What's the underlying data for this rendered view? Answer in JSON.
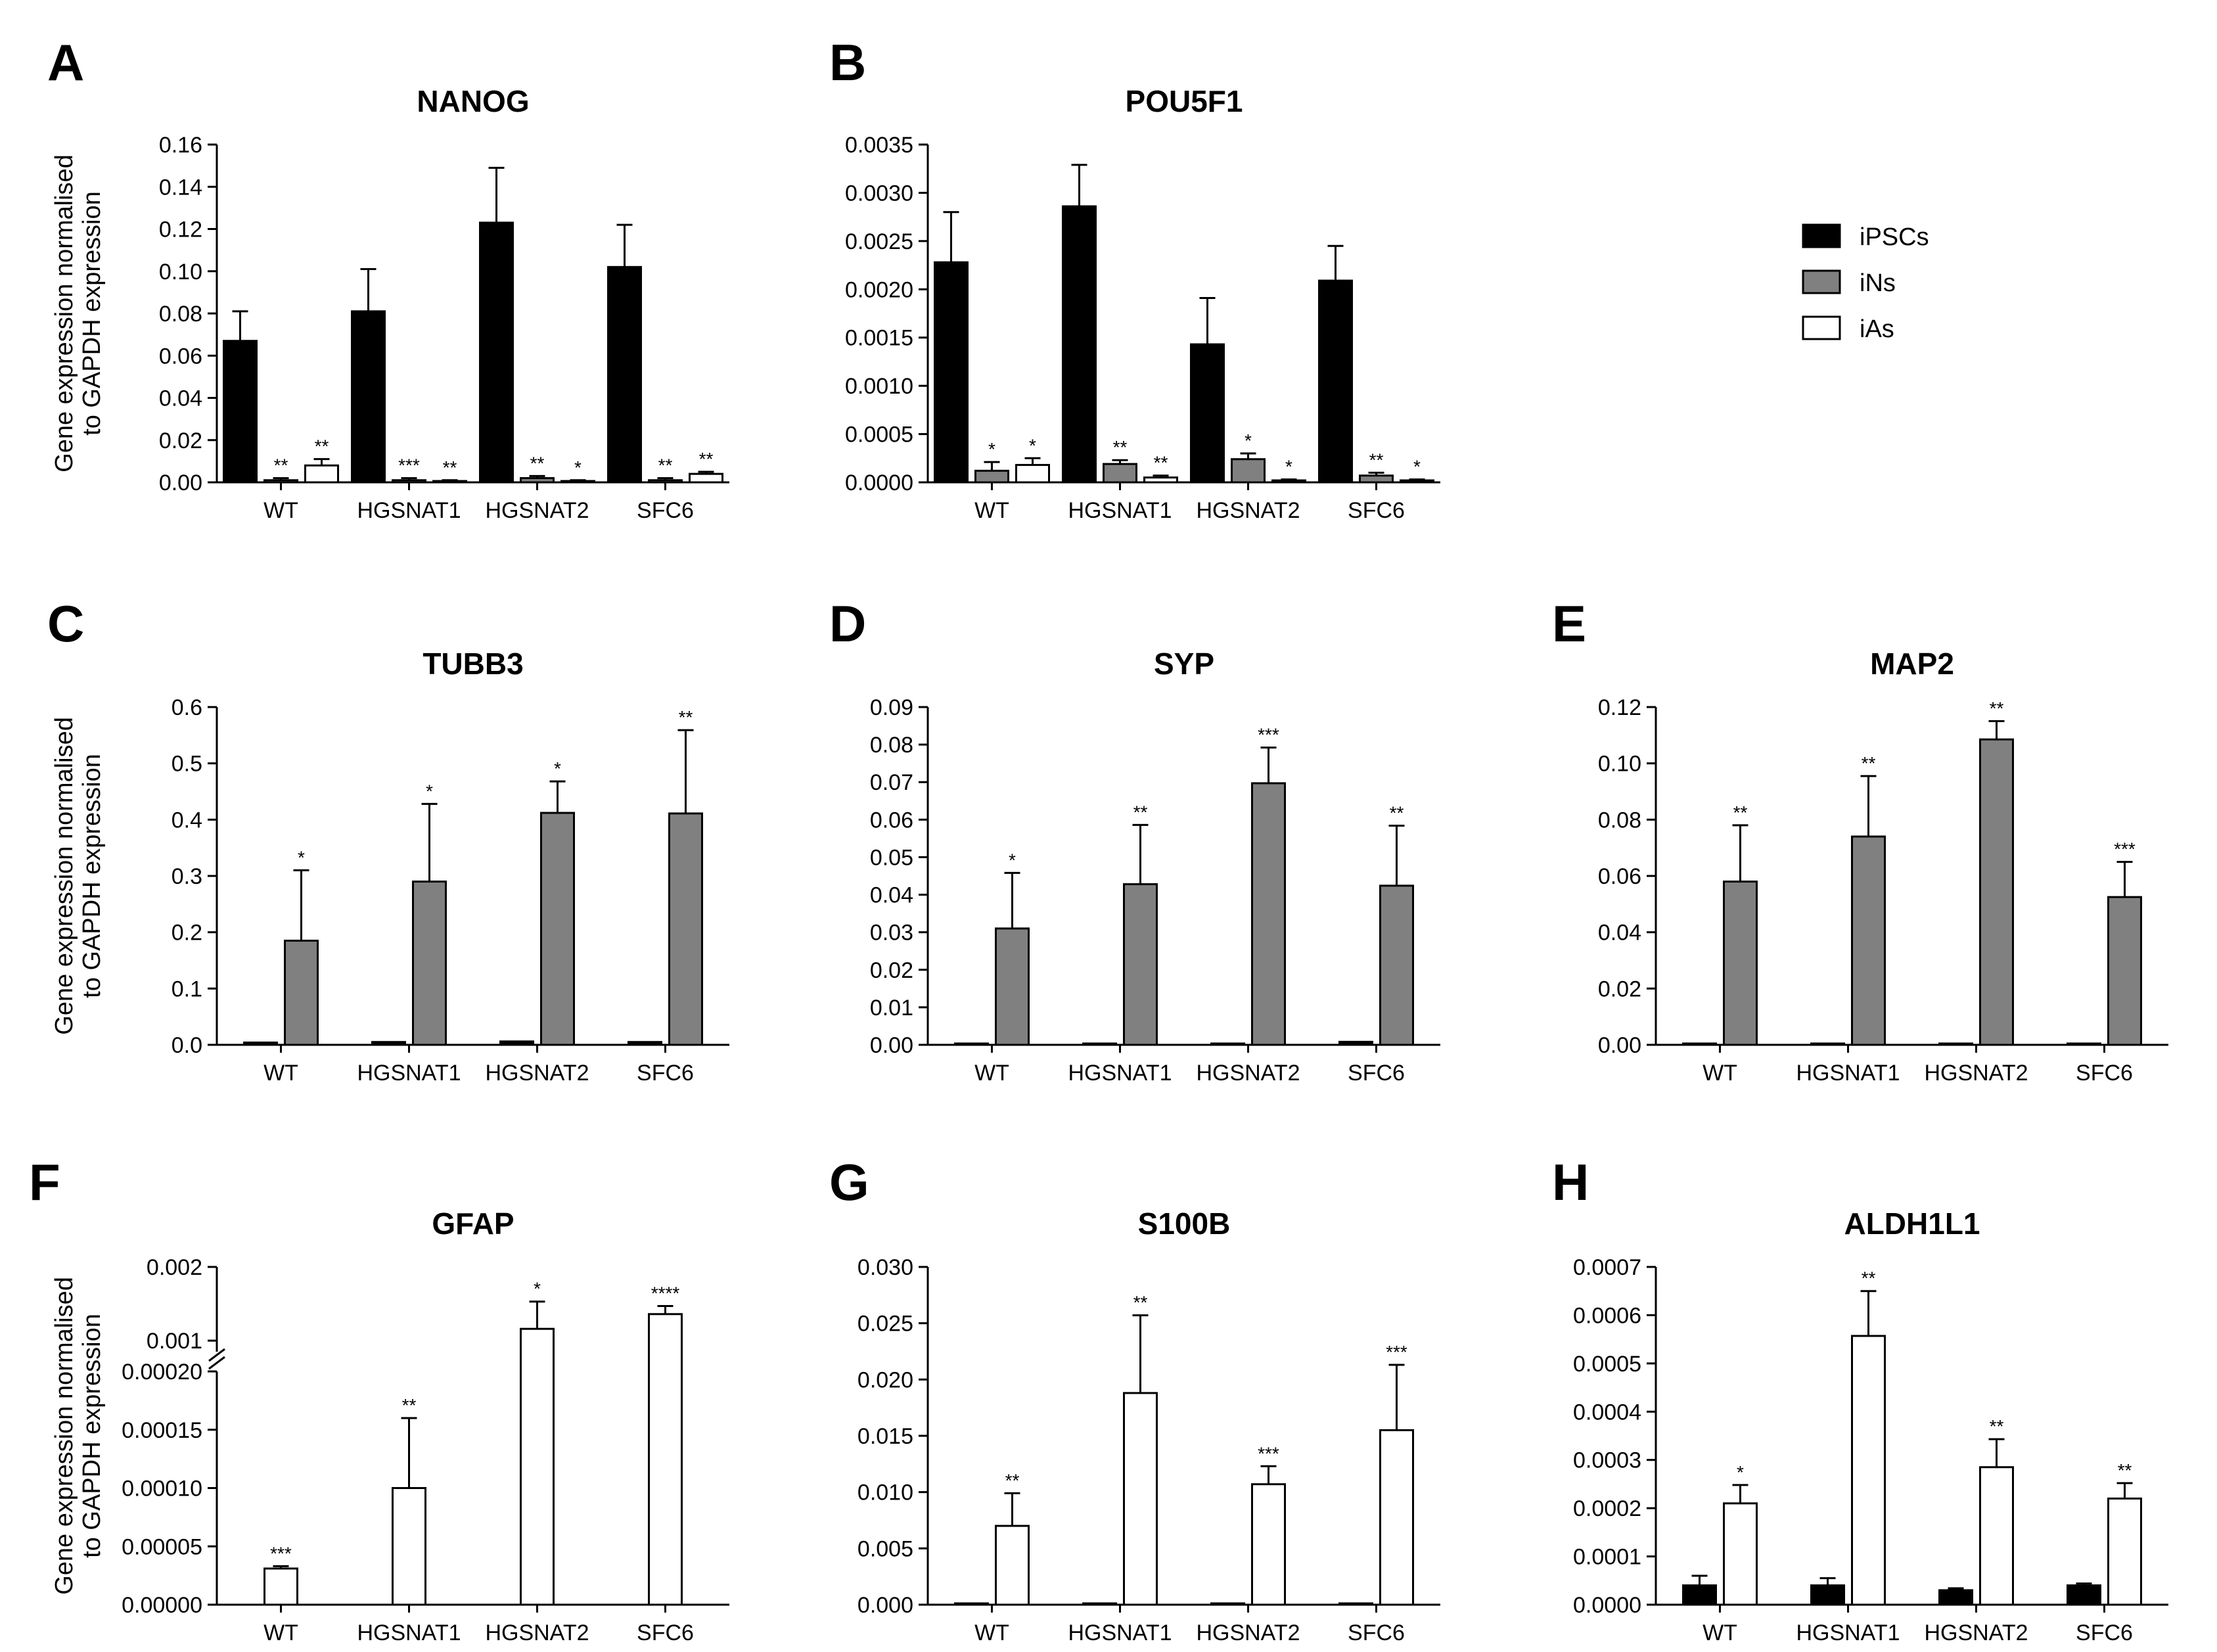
{
  "legend": [
    {
      "label": "iPSCs",
      "color": "#000000"
    },
    {
      "label": "iNs",
      "color": "#808080"
    },
    {
      "label": "iAs",
      "color": "#ffffff"
    }
  ],
  "shared_ylabel_lines": [
    "Gene expression normalised",
    "to GAPDH expression"
  ],
  "chart_data": [
    {
      "panel": "A",
      "type": "bar",
      "title": "NANOG",
      "categories": [
        "WT",
        "HGSNAT1",
        "HGSNAT2",
        "SFC6"
      ],
      "ylim": [
        0,
        0.16
      ],
      "yticks": [
        "0.00",
        "0.02",
        "0.04",
        "0.06",
        "0.08",
        "0.10",
        "0.12",
        "0.14",
        "0.16"
      ],
      "ylabel": "Gene expression normalised to GAPDH expression",
      "series": [
        {
          "name": "iPSCs",
          "values": [
            0.067,
            0.081,
            0.123,
            0.102
          ],
          "errors": [
            0.014,
            0.02,
            0.026,
            0.02
          ],
          "stars": [
            "",
            "",
            "",
            ""
          ]
        },
        {
          "name": "iNs",
          "values": [
            0.001,
            0.001,
            0.002,
            0.001
          ],
          "errors": [
            0.001,
            0.001,
            0.001,
            0.001
          ],
          "stars": [
            "**",
            "***",
            "**",
            "**"
          ]
        },
        {
          "name": "iAs",
          "values": [
            0.008,
            0.0005,
            0.0005,
            0.004
          ],
          "errors": [
            0.003,
            0.0005,
            0.0005,
            0.001
          ],
          "stars": [
            "**",
            "**",
            "*",
            "**"
          ]
        }
      ]
    },
    {
      "panel": "B",
      "type": "bar",
      "title": "POU5F1",
      "categories": [
        "WT",
        "HGSNAT1",
        "HGSNAT2",
        "SFC6"
      ],
      "ylim": [
        0,
        0.0035
      ],
      "yticks": [
        "0.0000",
        "0.0005",
        "0.0010",
        "0.0015",
        "0.0020",
        "0.0025",
        "0.0030",
        "0.0035"
      ],
      "ylabel": "",
      "series": [
        {
          "name": "iPSCs",
          "values": [
            0.00228,
            0.00286,
            0.00143,
            0.00209
          ],
          "errors": [
            0.00052,
            0.00043,
            0.00048,
            0.00036
          ],
          "stars": [
            "",
            "",
            "",
            ""
          ]
        },
        {
          "name": "iNs",
          "values": [
            0.00012,
            0.00019,
            0.00024,
            7e-05
          ],
          "errors": [
            9e-05,
            4e-05,
            6e-05,
            3e-05
          ],
          "stars": [
            "*",
            "**",
            "*",
            "**"
          ]
        },
        {
          "name": "iAs",
          "values": [
            0.00018,
            5e-05,
            2e-05,
            2e-05
          ],
          "errors": [
            7e-05,
            2e-05,
            1e-05,
            1e-05
          ],
          "stars": [
            "*",
            "**",
            "*",
            "*"
          ]
        }
      ]
    },
    {
      "panel": "C",
      "type": "bar",
      "title": "TUBB3",
      "categories": [
        "WT",
        "HGSNAT1",
        "HGSNAT2",
        "SFC6"
      ],
      "ylim": [
        0,
        0.6
      ],
      "yticks": [
        "0.0",
        "0.1",
        "0.2",
        "0.3",
        "0.4",
        "0.5",
        "0.6"
      ],
      "ylabel": "Gene expression normalised to GAPDH expression",
      "series": [
        {
          "name": "iPSCs",
          "values": [
            0.004,
            0.005,
            0.006,
            0.005
          ],
          "errors": [
            0,
            0,
            0,
            0
          ],
          "stars": [
            "",
            "",
            "",
            ""
          ]
        },
        {
          "name": "iNs",
          "values": [
            0.185,
            0.29,
            0.412,
            0.411
          ],
          "errors": [
            0.125,
            0.138,
            0.056,
            0.148
          ],
          "stars": [
            "*",
            "*",
            "*",
            "**"
          ]
        }
      ]
    },
    {
      "panel": "D",
      "type": "bar",
      "title": "SYP",
      "categories": [
        "WT",
        "HGSNAT1",
        "HGSNAT2",
        "SFC6"
      ],
      "ylim": [
        0,
        0.09
      ],
      "yticks": [
        "0.00",
        "0.01",
        "0.02",
        "0.03",
        "0.04",
        "0.05",
        "0.06",
        "0.07",
        "0.08",
        "0.09"
      ],
      "ylabel": "",
      "series": [
        {
          "name": "iPSCs",
          "values": [
            0.0003,
            0.0003,
            0.0003,
            0.0008
          ],
          "errors": [
            0,
            0,
            0,
            0
          ],
          "stars": [
            "",
            "",
            "",
            ""
          ]
        },
        {
          "name": "iNs",
          "values": [
            0.031,
            0.0428,
            0.0697,
            0.0424
          ],
          "errors": [
            0.0148,
            0.0158,
            0.0095,
            0.016
          ],
          "stars": [
            "*",
            "**",
            "***",
            "**"
          ]
        }
      ]
    },
    {
      "panel": "E",
      "type": "bar",
      "title": "MAP2",
      "categories": [
        "WT",
        "HGSNAT1",
        "HGSNAT2",
        "SFC6"
      ],
      "ylim": [
        0,
        0.12
      ],
      "yticks": [
        "0.00",
        "0.02",
        "0.04",
        "0.06",
        "0.08",
        "0.10",
        "0.12"
      ],
      "ylabel": "",
      "series": [
        {
          "name": "iPSCs",
          "values": [
            0.0003,
            0.0003,
            0.0003,
            0.0003
          ],
          "errors": [
            0,
            0,
            0,
            0
          ],
          "stars": [
            "",
            "",
            "",
            ""
          ]
        },
        {
          "name": "iNs",
          "values": [
            0.058,
            0.074,
            0.1085,
            0.0525
          ],
          "errors": [
            0.02,
            0.0215,
            0.0065,
            0.0125
          ],
          "stars": [
            "**",
            "**",
            "**",
            "***"
          ]
        }
      ]
    },
    {
      "panel": "F",
      "type": "bar",
      "title": "GFAP",
      "categories": [
        "WT",
        "HGSNAT1",
        "HGSNAT2",
        "SFC6"
      ],
      "axis_break": {
        "lower": [
          0,
          0.0002
        ],
        "upper": [
          0.00085,
          0.002
        ]
      },
      "yticks_lower": [
        "0.00000",
        "0.00005",
        "0.00010",
        "0.00015",
        "0.00020"
      ],
      "yticks_upper": [
        "0.001",
        "0.002"
      ],
      "ylabel": "Gene expression normalised to GAPDH expression",
      "series": [
        {
          "name": "iAs",
          "values": [
            3.1e-05,
            0.0001,
            0.00116,
            0.00136
          ],
          "errors": [
            2e-06,
            6e-05,
            0.00037,
            0.00011
          ],
          "stars": [
            "***",
            "**",
            "*",
            "****"
          ]
        }
      ]
    },
    {
      "panel": "G",
      "type": "bar",
      "title": "S100B",
      "categories": [
        "WT",
        "HGSNAT1",
        "HGSNAT2",
        "SFC6"
      ],
      "ylim": [
        0,
        0.03
      ],
      "yticks": [
        "0.000",
        "0.005",
        "0.010",
        "0.015",
        "0.020",
        "0.025",
        "0.030"
      ],
      "ylabel": "",
      "series": [
        {
          "name": "iPSCs",
          "values": [
            3e-05,
            3e-05,
            3e-05,
            3e-05
          ],
          "errors": [
            0,
            0,
            0,
            0
          ],
          "stars": [
            "",
            "",
            "",
            ""
          ]
        },
        {
          "name": "iAs",
          "values": [
            0.007,
            0.0188,
            0.0107,
            0.0155
          ],
          "errors": [
            0.0029,
            0.0069,
            0.0016,
            0.0058
          ],
          "stars": [
            "**",
            "**",
            "***",
            "***"
          ]
        }
      ]
    },
    {
      "panel": "H",
      "type": "bar",
      "title": "ALDH1L1",
      "categories": [
        "WT",
        "HGSNAT1",
        "HGSNAT2",
        "SFC6"
      ],
      "ylim": [
        0,
        0.0007
      ],
      "yticks": [
        "0.0000",
        "0.0001",
        "0.0002",
        "0.0003",
        "0.0004",
        "0.0005",
        "0.0006",
        "0.0007"
      ],
      "ylabel": "",
      "series": [
        {
          "name": "iPSCs",
          "values": [
            4e-05,
            4e-05,
            3e-05,
            4e-05
          ],
          "errors": [
            2e-05,
            1.5e-05,
            4e-06,
            4e-06
          ],
          "stars": [
            "",
            "",
            "",
            ""
          ]
        },
        {
          "name": "iAs",
          "values": [
            0.00021,
            0.000557,
            0.000285,
            0.00022
          ],
          "errors": [
            3.8e-05,
            9.3e-05,
            5.8e-05,
            3.2e-05
          ],
          "stars": [
            "*",
            "**",
            "**",
            "**"
          ]
        }
      ]
    }
  ]
}
